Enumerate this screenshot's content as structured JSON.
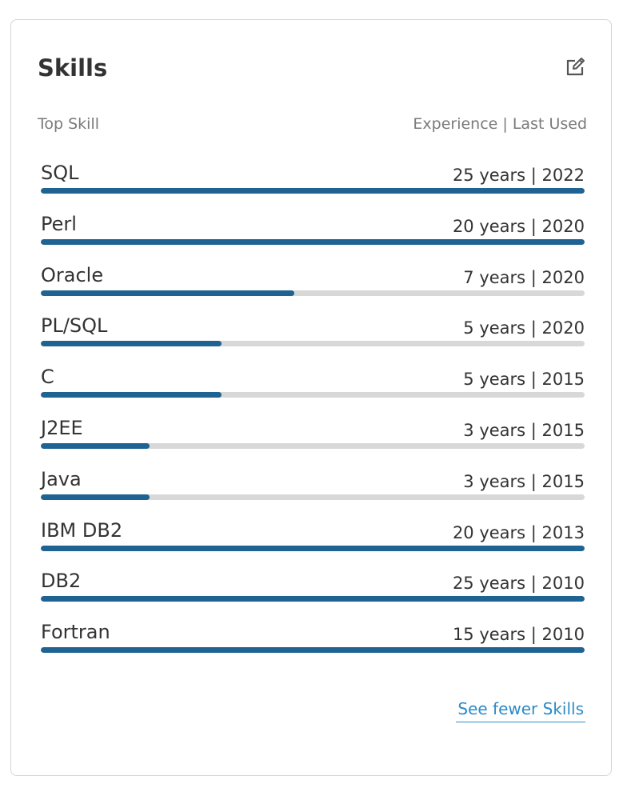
{
  "card": {
    "title": "Skills",
    "edit_icon": "edit-icon",
    "col_left": "Top Skill",
    "col_right": "Experience | Last Used",
    "toggle_link": "See fewer Skills"
  },
  "colors": {
    "bar_fill": "#1f6392",
    "bar_track": "#d8d8d8",
    "link": "#2a8bc9"
  },
  "skills": [
    {
      "name": "SQL",
      "meta": "25 years | 2022",
      "level": 1.0
    },
    {
      "name": "Perl",
      "meta": "20 years | 2020",
      "level": 1.0
    },
    {
      "name": "Oracle",
      "meta": "7 years | 2020",
      "level": 0.466
    },
    {
      "name": "PL/SQL",
      "meta": "5 years | 2020",
      "level": 0.333
    },
    {
      "name": "C",
      "meta": "5 years | 2015",
      "level": 0.333
    },
    {
      "name": "J2EE",
      "meta": "3 years | 2015",
      "level": 0.2
    },
    {
      "name": "Java",
      "meta": "3 years | 2015",
      "level": 0.2
    },
    {
      "name": "IBM DB2",
      "meta": "20 years | 2013",
      "level": 1.0
    },
    {
      "name": "DB2",
      "meta": "25 years | 2010",
      "level": 1.0
    },
    {
      "name": "Fortran",
      "meta": "15 years | 2010",
      "level": 1.0
    }
  ]
}
